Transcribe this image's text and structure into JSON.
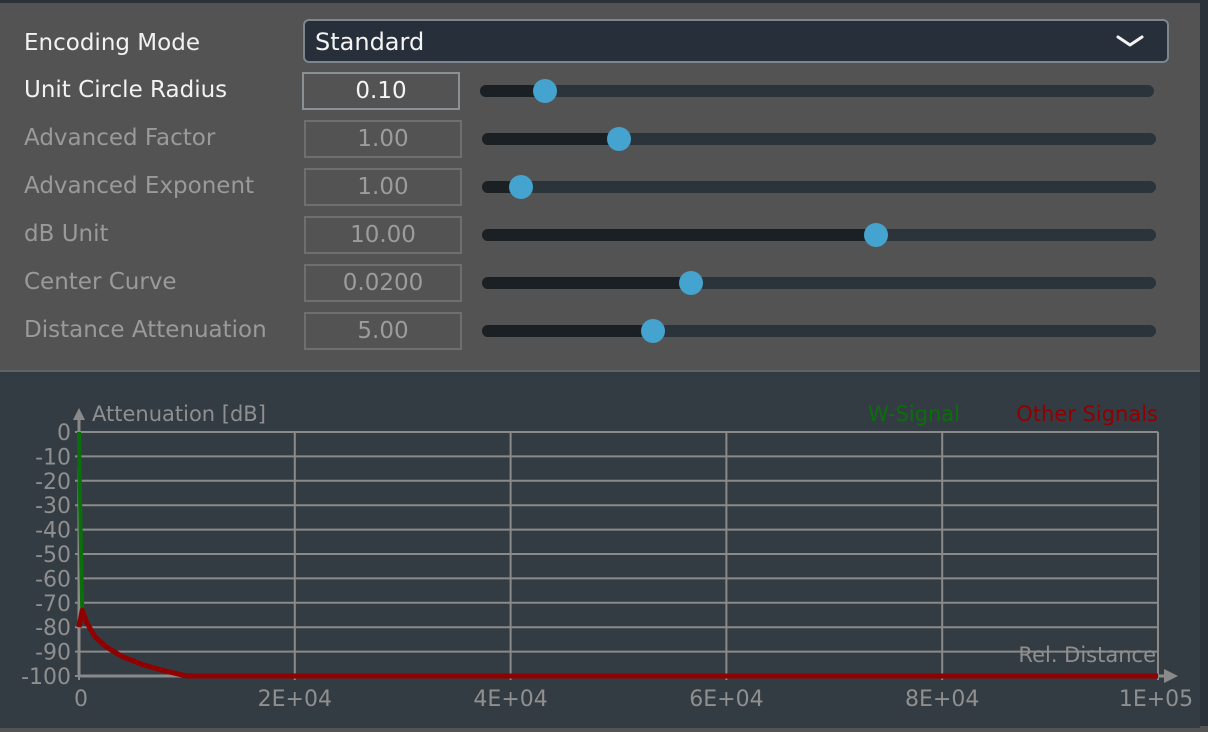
{
  "encoding_mode": {
    "label": "Encoding Mode",
    "value": "Standard",
    "icon": "chevron-down-icon"
  },
  "parameters": [
    {
      "label": "Unit Circle Radius",
      "value": "0.10",
      "slider_fraction": 0.096,
      "active": true
    },
    {
      "label": "Advanced Factor",
      "value": "1.00",
      "slider_fraction": 0.204,
      "active": false
    },
    {
      "label": "Advanced Exponent",
      "value": "1.00",
      "slider_fraction": 0.058,
      "active": false
    },
    {
      "label": "dB Unit",
      "value": "10.00",
      "slider_fraction": 0.585,
      "active": false
    },
    {
      "label": "Center Curve",
      "value": "0.0200",
      "slider_fraction": 0.31,
      "active": false
    },
    {
      "label": "Distance Attenuation",
      "value": "5.00",
      "slider_fraction": 0.254,
      "active": false
    }
  ],
  "colors": {
    "accent": "#45a3cf",
    "w_signal": "#0a6e0a",
    "other_signals": "#8f0000",
    "grid": "#8a8a8a",
    "chart_bg": "#343c43"
  },
  "chart_data": {
    "type": "line",
    "ylabel": "Attenuation [dB]",
    "xlabel": "Rel. Distance",
    "xlim": [
      0,
      100000
    ],
    "ylim": [
      -100,
      0
    ],
    "grid": true,
    "legend_placement": "top-right",
    "x_ticks": [
      "0",
      "2E+04",
      "4E+04",
      "6E+04",
      "8E+04",
      "1E+05"
    ],
    "x_tick_values": [
      0,
      20000,
      40000,
      60000,
      80000,
      100000
    ],
    "y_ticks": [
      "0",
      "-10",
      "-20",
      "-30",
      "-40",
      "-50",
      "-60",
      "-70",
      "-80",
      "-90",
      "-100"
    ],
    "y_tick_values": [
      0,
      -10,
      -20,
      -30,
      -40,
      -50,
      -60,
      -70,
      -80,
      -90,
      -100
    ],
    "series": [
      {
        "name": "W-Signal",
        "color": "#0a6e0a",
        "x": [
          0,
          150,
          300
        ],
        "y": [
          0,
          -40,
          -73
        ]
      },
      {
        "name": "Other Signals",
        "color": "#8f0000",
        "x": [
          0,
          300,
          700,
          1500,
          2500,
          4000,
          6000,
          8000,
          10000,
          100000
        ],
        "y": [
          -80,
          -73,
          -78,
          -84,
          -88,
          -92,
          -95.5,
          -98,
          -100,
          -100
        ]
      }
    ]
  }
}
